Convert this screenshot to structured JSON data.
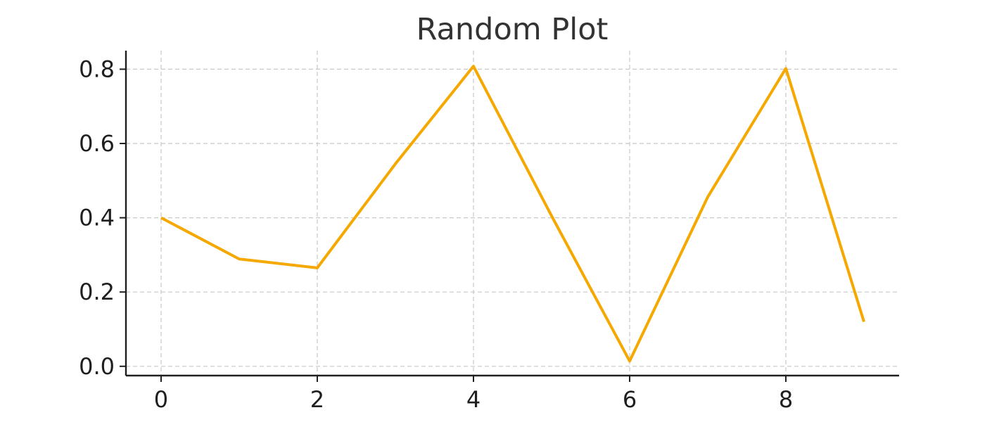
{
  "chart_data": {
    "type": "line",
    "title": "Random Plot",
    "xlabel": "",
    "ylabel": "",
    "x": [
      0,
      1,
      2,
      3,
      4,
      5,
      6,
      7,
      8,
      9
    ],
    "series": [
      {
        "values": [
          0.4,
          0.289,
          0.265,
          0.545,
          0.808,
          0.405,
          0.014,
          0.456,
          0.802,
          0.12
        ],
        "color": "#f5a800"
      }
    ],
    "xlim": [
      -0.45,
      9.45
    ],
    "ylim": [
      -0.025,
      0.85
    ],
    "xticks": [
      0,
      2,
      4,
      6,
      8
    ],
    "yticks": [
      0.0,
      0.2,
      0.4,
      0.6,
      0.8
    ],
    "xtick_labels": [
      "0",
      "2",
      "4",
      "6",
      "8"
    ],
    "ytick_labels": [
      "0.0",
      "0.2",
      "0.4",
      "0.6",
      "0.8"
    ],
    "grid": true,
    "legend": "none"
  }
}
